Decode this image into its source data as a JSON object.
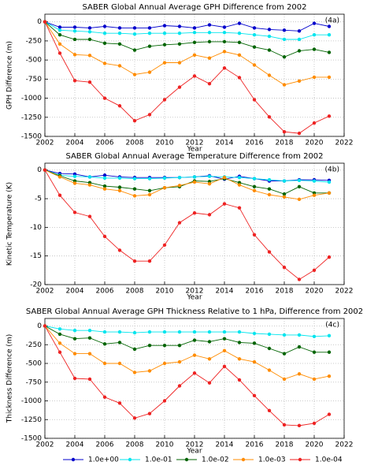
{
  "chart_data": [
    {
      "type": "line",
      "title": "SABER Global Annual Average GPH Difference from 2002",
      "annotation": "(4a)",
      "x_label": "Year",
      "y_label": "GPH Difference (m)",
      "x": [
        2002,
        2003,
        2004,
        2005,
        2006,
        2007,
        2008,
        2009,
        2010,
        2011,
        2012,
        2013,
        2014,
        2015,
        2016,
        2017,
        2018,
        2019,
        2020,
        2021
      ],
      "xlim": [
        2002,
        2022
      ],
      "xticks": [
        2002,
        2004,
        2006,
        2008,
        2010,
        2012,
        2014,
        2016,
        2018,
        2020,
        2022
      ],
      "ylim": [
        -1500,
        100
      ],
      "yticks": [
        0,
        -250,
        -500,
        -750,
        -1000,
        -1250,
        -1500
      ],
      "grid": true,
      "series": [
        {
          "name": "1.0e+00",
          "color": "#0000cc",
          "values": [
            0,
            -70,
            -70,
            -80,
            -60,
            -80,
            -80,
            -80,
            -50,
            -60,
            -80,
            -40,
            -70,
            -20,
            -80,
            -100,
            -110,
            -120,
            -20,
            -60
          ]
        },
        {
          "name": "1.0e-01",
          "color": "#00e5ee",
          "values": [
            0,
            -110,
            -120,
            -130,
            -150,
            -150,
            -160,
            -150,
            -150,
            -150,
            -140,
            -140,
            -140,
            -150,
            -170,
            -190,
            -230,
            -230,
            -170,
            -170
          ]
        },
        {
          "name": "1.0e-02",
          "color": "#006400",
          "values": [
            0,
            -170,
            -230,
            -230,
            -280,
            -290,
            -370,
            -320,
            -300,
            -290,
            -270,
            -260,
            -260,
            -270,
            -330,
            -370,
            -460,
            -380,
            -360,
            -400
          ]
        },
        {
          "name": "1.0e-03",
          "color": "#ff8c00",
          "values": [
            0,
            -290,
            -430,
            -440,
            -545,
            -575,
            -690,
            -660,
            -535,
            -535,
            -435,
            -475,
            -390,
            -435,
            -565,
            -700,
            -825,
            -775,
            -725,
            -725
          ]
        },
        {
          "name": "1.0e-04",
          "color": "#ee2222",
          "values": [
            0,
            -410,
            -770,
            -790,
            -1000,
            -1100,
            -1295,
            -1215,
            -1020,
            -855,
            -710,
            -810,
            -605,
            -730,
            -1020,
            -1245,
            -1440,
            -1460,
            -1325,
            -1235
          ]
        }
      ]
    },
    {
      "type": "line",
      "title": "SABER Global Annual Average Temperature Difference from 2002",
      "annotation": "(4b)",
      "x_label": "Year",
      "y_label": "Kinetic Temperature (K)",
      "x": [
        2002,
        2003,
        2004,
        2005,
        2006,
        2007,
        2008,
        2009,
        2010,
        2011,
        2012,
        2013,
        2014,
        2015,
        2016,
        2017,
        2018,
        2019,
        2020,
        2021
      ],
      "xlim": [
        2002,
        2022
      ],
      "xticks": [
        2002,
        2004,
        2006,
        2008,
        2010,
        2012,
        2014,
        2016,
        2018,
        2020,
        2022
      ],
      "ylim": [
        -20,
        1.2
      ],
      "yticks": [
        0,
        -5,
        -10,
        -15,
        -20
      ],
      "grid": true,
      "series": [
        {
          "color": "#0000cc",
          "values": [
            0,
            -0.6,
            -0.7,
            -1.2,
            -0.9,
            -1.2,
            -1.3,
            -1.3,
            -1.3,
            -1.3,
            -1.2,
            -1.0,
            -1.6,
            -1.1,
            -1.5,
            -1.9,
            -1.9,
            -1.7,
            -1.7,
            -1.8
          ]
        },
        {
          "color": "#00e5ee",
          "values": [
            0,
            -0.9,
            -1.1,
            -1.2,
            -1.4,
            -1.4,
            -1.5,
            -1.5,
            -1.4,
            -1.3,
            -1.2,
            -1.1,
            -1.2,
            -1.3,
            -1.5,
            -1.7,
            -1.9,
            -1.8,
            -1.9,
            -2.1
          ]
        },
        {
          "color": "#006400",
          "values": [
            0,
            -1,
            -1.9,
            -2.2,
            -2.8,
            -3.0,
            -3.3,
            -3.6,
            -3.1,
            -2.9,
            -1.9,
            -2.0,
            -1.5,
            -2.2,
            -2.9,
            -3.3,
            -4.2,
            -2.9,
            -4.0,
            -4.0
          ]
        },
        {
          "color": "#ff8c00",
          "values": [
            0,
            -1.2,
            -2.3,
            -2.6,
            -3.3,
            -3.6,
            -4.5,
            -4.3,
            -3.1,
            -2.7,
            -2.1,
            -2.4,
            -1.3,
            -2.6,
            -3.6,
            -4.3,
            -4.7,
            -5.1,
            -4.4,
            -4.0
          ]
        },
        {
          "color": "#ee2222",
          "values": [
            0,
            -4.4,
            -7.4,
            -8.1,
            -11.6,
            -14,
            -15.9,
            -15.9,
            -13.1,
            -9.2,
            -7.5,
            -7.8,
            -5.9,
            -6.6,
            -11.3,
            -14.3,
            -17,
            -19.1,
            -17.5,
            -15.2
          ]
        }
      ]
    },
    {
      "type": "line",
      "title": "SABER Global Annual Average GPH Thickness Relative to 1 hPa, Difference from 2002",
      "annotation": "(4c)",
      "x_label": "Year",
      "y_label": "Thickness Difference (m)",
      "x": [
        2002,
        2003,
        2004,
        2005,
        2006,
        2007,
        2008,
        2009,
        2010,
        2011,
        2012,
        2013,
        2014,
        2015,
        2016,
        2017,
        2018,
        2019,
        2020,
        2021
      ],
      "xlim": [
        2002,
        2022
      ],
      "xticks": [
        2002,
        2004,
        2006,
        2008,
        2010,
        2012,
        2014,
        2016,
        2018,
        2020,
        2022
      ],
      "ylim": [
        -1500,
        100
      ],
      "yticks": [
        0,
        -250,
        -500,
        -750,
        -1000,
        -1250,
        -1500
      ],
      "grid": true,
      "series": [
        {
          "color": "#00e5ee",
          "values": [
            0,
            -40,
            -60,
            -60,
            -80,
            -80,
            -90,
            -80,
            -80,
            -80,
            -80,
            -80,
            -80,
            -80,
            -100,
            -110,
            -120,
            -120,
            -140,
            -130
          ]
        },
        {
          "color": "#006400",
          "values": [
            0,
            -110,
            -170,
            -160,
            -240,
            -220,
            -310,
            -260,
            -260,
            -260,
            -190,
            -210,
            -170,
            -220,
            -230,
            -300,
            -370,
            -280,
            -350,
            -350
          ]
        },
        {
          "color": "#ff8c00",
          "values": [
            0,
            -230,
            -370,
            -370,
            -500,
            -500,
            -620,
            -600,
            -500,
            -480,
            -390,
            -440,
            -330,
            -440,
            -480,
            -590,
            -710,
            -640,
            -710,
            -670
          ]
        },
        {
          "color": "#ee2222",
          "values": [
            0,
            -350,
            -700,
            -710,
            -950,
            -1030,
            -1230,
            -1170,
            -1000,
            -800,
            -630,
            -760,
            -540,
            -720,
            -930,
            -1130,
            -1320,
            -1330,
            -1300,
            -1180
          ]
        }
      ]
    }
  ]
}
